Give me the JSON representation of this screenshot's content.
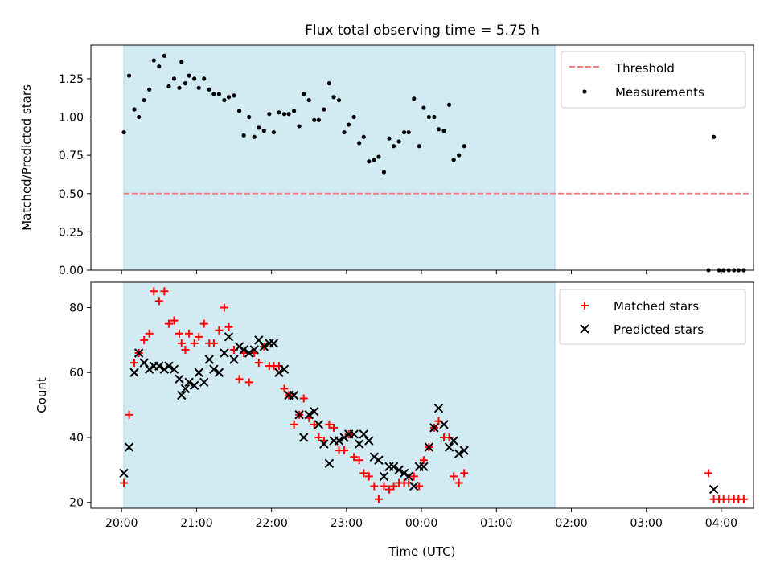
{
  "title": "Flux total observing time = 5.75 h",
  "shade_color": "#add8e6",
  "chart_data": [
    {
      "type": "scatter",
      "name": "ratio-panel",
      "ylabel": "Matched/Predicted stars",
      "xlabel": "",
      "xlim": [
        -0.41,
        8.43
      ],
      "ylim": [
        0.0,
        1.47
      ],
      "x_ticks": [
        0,
        1,
        2,
        3,
        4,
        5,
        6,
        7,
        8
      ],
      "x_ticklabels": [],
      "y_ticks": [
        0.0,
        0.25,
        0.5,
        0.75,
        1.0,
        1.25
      ],
      "y_ticklabels": [
        "0.00",
        "0.25",
        "0.50",
        "0.75",
        "1.00",
        "1.25"
      ],
      "shaded_span": [
        0.03,
        5.78
      ],
      "threshold": {
        "name": "Threshold",
        "y": 0.5,
        "x_range": [
          0.03,
          8.4
        ],
        "color": "#f08080"
      },
      "legend": {
        "position": "top-right",
        "entries": [
          "Threshold",
          "Measurements"
        ]
      },
      "series": [
        {
          "name": "Measurements",
          "color": "#000000",
          "points": [
            [
              0.03,
              0.9
            ],
            [
              0.1,
              1.27
            ],
            [
              0.17,
              1.05
            ],
            [
              0.23,
              1.0
            ],
            [
              0.3,
              1.11
            ],
            [
              0.37,
              1.18
            ],
            [
              0.43,
              1.37
            ],
            [
              0.5,
              1.33
            ],
            [
              0.57,
              1.4
            ],
            [
              0.63,
              1.2
            ],
            [
              0.7,
              1.25
            ],
            [
              0.77,
              1.19
            ],
            [
              0.8,
              1.36
            ],
            [
              0.85,
              1.22
            ],
            [
              0.9,
              1.27
            ],
            [
              0.97,
              1.25
            ],
            [
              1.03,
              1.19
            ],
            [
              1.1,
              1.25
            ],
            [
              1.17,
              1.18
            ],
            [
              1.23,
              1.15
            ],
            [
              1.3,
              1.15
            ],
            [
              1.37,
              1.11
            ],
            [
              1.43,
              1.13
            ],
            [
              1.5,
              1.14
            ],
            [
              1.57,
              1.04
            ],
            [
              1.63,
              0.88
            ],
            [
              1.7,
              1.0
            ],
            [
              1.77,
              0.87
            ],
            [
              1.83,
              0.93
            ],
            [
              1.9,
              0.91
            ],
            [
              1.97,
              1.02
            ],
            [
              2.03,
              0.9
            ],
            [
              2.1,
              1.03
            ],
            [
              2.17,
              1.02
            ],
            [
              2.23,
              1.02
            ],
            [
              2.3,
              1.04
            ],
            [
              2.37,
              0.94
            ],
            [
              2.43,
              1.15
            ],
            [
              2.5,
              1.11
            ],
            [
              2.57,
              0.98
            ],
            [
              2.63,
              0.98
            ],
            [
              2.7,
              1.05
            ],
            [
              2.77,
              1.22
            ],
            [
              2.83,
              1.13
            ],
            [
              2.9,
              1.11
            ],
            [
              2.97,
              0.9
            ],
            [
              3.03,
              0.95
            ],
            [
              3.1,
              1.0
            ],
            [
              3.17,
              0.83
            ],
            [
              3.23,
              0.87
            ],
            [
              3.3,
              0.71
            ],
            [
              3.37,
              0.72
            ],
            [
              3.43,
              0.74
            ],
            [
              3.5,
              0.64
            ],
            [
              3.57,
              0.86
            ],
            [
              3.63,
              0.81
            ],
            [
              3.7,
              0.84
            ],
            [
              3.77,
              0.9
            ],
            [
              3.83,
              0.9
            ],
            [
              3.9,
              1.12
            ],
            [
              3.97,
              0.81
            ],
            [
              4.03,
              1.06
            ],
            [
              4.1,
              1.0
            ],
            [
              4.17,
              1.0
            ],
            [
              4.23,
              0.92
            ],
            [
              4.3,
              0.91
            ],
            [
              4.37,
              1.08
            ],
            [
              4.43,
              0.72
            ],
            [
              4.5,
              0.75
            ],
            [
              4.57,
              0.81
            ],
            [
              7.83,
              0.0
            ],
            [
              7.9,
              0.87
            ],
            [
              7.97,
              0.0
            ],
            [
              8.03,
              0.0
            ],
            [
              8.1,
              0.0
            ],
            [
              8.17,
              0.0
            ],
            [
              8.23,
              0.0
            ],
            [
              8.3,
              0.0
            ]
          ]
        }
      ]
    },
    {
      "type": "scatter",
      "name": "count-panel",
      "ylabel": "Count",
      "xlabel": "Time (UTC)",
      "xlim": [
        -0.41,
        8.43
      ],
      "ylim": [
        18.2,
        87.8
      ],
      "x_ticks": [
        0,
        1,
        2,
        3,
        4,
        5,
        6,
        7,
        8
      ],
      "x_ticklabels": [
        "20:00",
        "21:00",
        "22:00",
        "23:00",
        "00:00",
        "01:00",
        "02:00",
        "03:00",
        "04:00"
      ],
      "y_ticks": [
        20,
        40,
        60,
        80
      ],
      "y_ticklabels": [
        "20",
        "40",
        "60",
        "80"
      ],
      "shaded_span": [
        0.03,
        5.78
      ],
      "legend": {
        "position": "top-right",
        "entries": [
          "Matched stars",
          "Predicted stars"
        ]
      },
      "series": [
        {
          "name": "Matched stars",
          "marker": "plus",
          "color": "#ff0000",
          "points": [
            [
              0.03,
              26
            ],
            [
              0.1,
              47
            ],
            [
              0.17,
              63
            ],
            [
              0.23,
              66
            ],
            [
              0.3,
              70
            ],
            [
              0.37,
              72
            ],
            [
              0.43,
              85
            ],
            [
              0.5,
              82
            ],
            [
              0.57,
              85
            ],
            [
              0.63,
              75
            ],
            [
              0.7,
              76
            ],
            [
              0.77,
              72
            ],
            [
              0.8,
              69
            ],
            [
              0.85,
              67
            ],
            [
              0.9,
              72
            ],
            [
              0.97,
              69
            ],
            [
              1.03,
              71
            ],
            [
              1.1,
              75
            ],
            [
              1.17,
              69
            ],
            [
              1.23,
              69
            ],
            [
              1.3,
              73
            ],
            [
              1.37,
              80
            ],
            [
              1.43,
              74
            ],
            [
              1.5,
              67
            ],
            [
              1.57,
              58
            ],
            [
              1.63,
              66
            ],
            [
              1.7,
              57
            ],
            [
              1.77,
              66
            ],
            [
              1.83,
              63
            ],
            [
              1.9,
              68
            ],
            [
              1.97,
              62
            ],
            [
              2.03,
              62
            ],
            [
              2.1,
              62
            ],
            [
              2.17,
              55
            ],
            [
              2.23,
              53
            ],
            [
              2.3,
              44
            ],
            [
              2.37,
              47
            ],
            [
              2.43,
              52
            ],
            [
              2.5,
              46
            ],
            [
              2.57,
              44
            ],
            [
              2.63,
              40
            ],
            [
              2.7,
              39
            ],
            [
              2.77,
              44
            ],
            [
              2.83,
              43
            ],
            [
              2.9,
              36
            ],
            [
              2.97,
              36
            ],
            [
              3.03,
              41
            ],
            [
              3.1,
              34
            ],
            [
              3.17,
              33
            ],
            [
              3.23,
              29
            ],
            [
              3.3,
              28
            ],
            [
              3.37,
              25
            ],
            [
              3.43,
              21
            ],
            [
              3.5,
              25
            ],
            [
              3.57,
              24
            ],
            [
              3.63,
              25
            ],
            [
              3.7,
              26
            ],
            [
              3.77,
              26
            ],
            [
              3.83,
              26
            ],
            [
              3.9,
              28
            ],
            [
              3.97,
              25
            ],
            [
              4.03,
              33
            ],
            [
              4.1,
              37
            ],
            [
              4.17,
              43
            ],
            [
              4.23,
              45
            ],
            [
              4.3,
              40
            ],
            [
              4.37,
              40
            ],
            [
              4.43,
              28
            ],
            [
              4.5,
              26
            ],
            [
              4.57,
              29
            ],
            [
              7.83,
              29
            ],
            [
              7.9,
              21
            ],
            [
              7.97,
              21
            ],
            [
              8.03,
              21
            ],
            [
              8.1,
              21
            ],
            [
              8.17,
              21
            ],
            [
              8.23,
              21
            ],
            [
              8.3,
              21
            ]
          ]
        },
        {
          "name": "Predicted stars",
          "marker": "x",
          "color": "#000000",
          "points": [
            [
              0.03,
              29
            ],
            [
              0.1,
              37
            ],
            [
              0.17,
              60
            ],
            [
              0.23,
              66
            ],
            [
              0.3,
              63
            ],
            [
              0.37,
              61
            ],
            [
              0.43,
              62
            ],
            [
              0.5,
              62
            ],
            [
              0.57,
              61
            ],
            [
              0.63,
              62
            ],
            [
              0.7,
              61
            ],
            [
              0.77,
              58
            ],
            [
              0.8,
              53
            ],
            [
              0.85,
              55
            ],
            [
              0.9,
              57
            ],
            [
              0.97,
              56
            ],
            [
              1.03,
              60
            ],
            [
              1.1,
              57
            ],
            [
              1.17,
              64
            ],
            [
              1.23,
              61
            ],
            [
              1.3,
              60
            ],
            [
              1.37,
              66
            ],
            [
              1.43,
              71
            ],
            [
              1.5,
              64
            ],
            [
              1.57,
              68
            ],
            [
              1.63,
              67
            ],
            [
              1.7,
              66
            ],
            [
              1.77,
              67
            ],
            [
              1.83,
              70
            ],
            [
              1.9,
              68
            ],
            [
              1.97,
              69
            ],
            [
              2.03,
              69
            ],
            [
              2.1,
              60
            ],
            [
              2.17,
              61
            ],
            [
              2.23,
              53
            ],
            [
              2.3,
              53
            ],
            [
              2.37,
              47
            ],
            [
              2.43,
              40
            ],
            [
              2.5,
              47
            ],
            [
              2.57,
              48
            ],
            [
              2.63,
              44
            ],
            [
              2.7,
              38
            ],
            [
              2.77,
              32
            ],
            [
              2.83,
              39
            ],
            [
              2.9,
              39
            ],
            [
              2.97,
              40
            ],
            [
              3.03,
              41
            ],
            [
              3.1,
              41
            ],
            [
              3.17,
              38
            ],
            [
              3.23,
              41
            ],
            [
              3.3,
              39
            ],
            [
              3.37,
              34
            ],
            [
              3.43,
              33
            ],
            [
              3.5,
              28
            ],
            [
              3.57,
              31
            ],
            [
              3.63,
              31
            ],
            [
              3.7,
              30
            ],
            [
              3.77,
              29
            ],
            [
              3.83,
              28
            ],
            [
              3.9,
              25
            ],
            [
              3.97,
              31
            ],
            [
              4.03,
              31
            ],
            [
              4.1,
              37
            ],
            [
              4.17,
              43
            ],
            [
              4.23,
              49
            ],
            [
              4.3,
              44
            ],
            [
              4.37,
              37
            ],
            [
              4.43,
              39
            ],
            [
              4.5,
              35
            ],
            [
              4.57,
              36
            ],
            [
              7.9,
              24
            ]
          ]
        }
      ]
    }
  ]
}
